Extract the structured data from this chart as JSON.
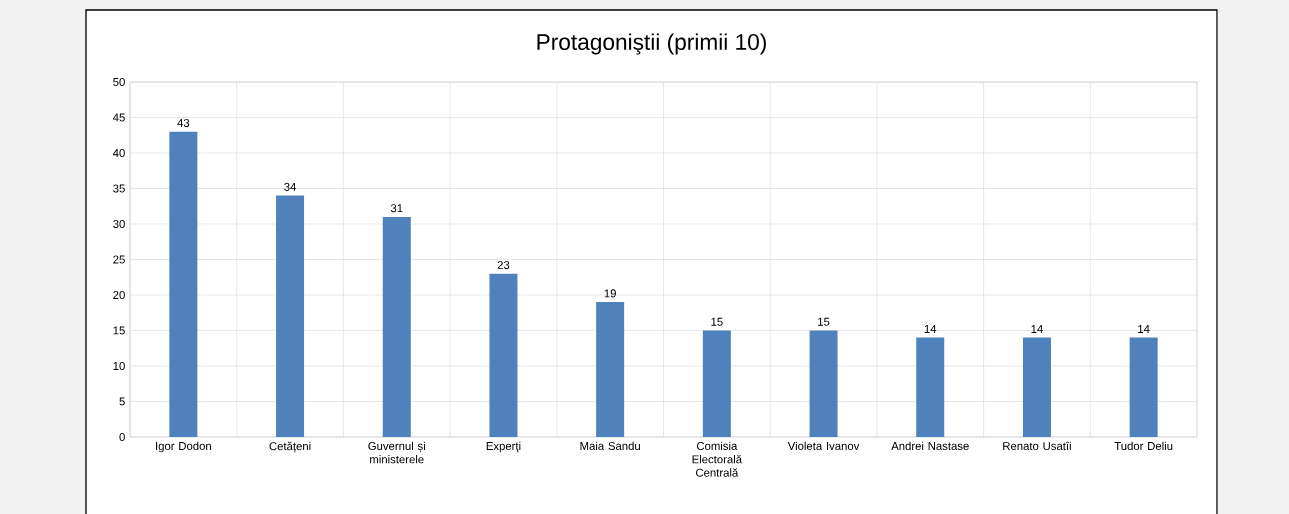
{
  "chart_data": {
    "type": "bar",
    "title": "Protagoniştii (primii 10)",
    "categories": [
      "Igor Dodon",
      "Cetățeni",
      "Guvernul și ministerele",
      "Experţi",
      "Maia Sandu",
      "Comisia Electorală Centrală",
      "Violeta Ivanov",
      "Andrei Nastase",
      "Renato Usatîi",
      "Tudor Deliu"
    ],
    "values": [
      43,
      34,
      31,
      23,
      19,
      15,
      15,
      14,
      14,
      14
    ],
    "color": "#4f81bd",
    "ylim": [
      0,
      50
    ],
    "yticks": [
      0,
      5,
      10,
      15,
      20,
      25,
      30,
      35,
      40,
      45,
      50
    ],
    "grid": true,
    "data_labels": true
  }
}
